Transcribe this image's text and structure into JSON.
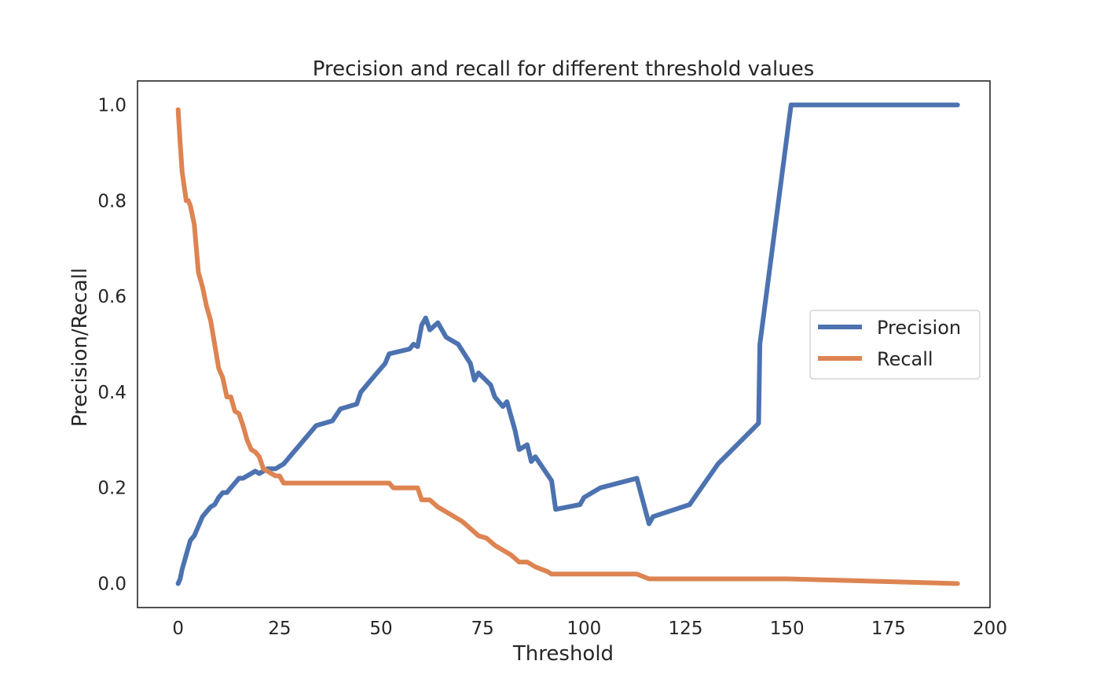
{
  "chart_data": {
    "type": "line",
    "title": "Precision and recall for different threshold values",
    "xlabel": "Threshold",
    "ylabel": "Precision/Recall",
    "xlim": [
      -10,
      200
    ],
    "ylim": [
      -0.05,
      1.05
    ],
    "xticks": [
      0,
      25,
      50,
      75,
      100,
      125,
      150,
      175,
      200
    ],
    "yticks": [
      0.0,
      0.2,
      0.4,
      0.6,
      0.8,
      1.0
    ],
    "xtick_labels": [
      "0",
      "25",
      "50",
      "75",
      "100",
      "125",
      "150",
      "175",
      "200"
    ],
    "ytick_labels": [
      "0.0",
      "0.2",
      "0.4",
      "0.6",
      "0.8",
      "1.0"
    ],
    "grid": false,
    "legend": "center-right",
    "series": [
      {
        "name": "Precision",
        "color": "#4c72b0",
        "x": [
          0,
          0.5,
          1,
          2,
          3,
          4,
          5,
          6,
          7,
          8,
          9,
          10,
          11,
          12,
          13,
          14,
          15,
          16,
          17,
          18,
          19,
          20,
          21,
          22,
          23,
          24,
          25,
          26,
          27,
          28,
          29,
          30,
          31,
          32,
          33,
          34,
          36,
          38,
          40,
          44,
          45,
          47,
          49,
          51,
          52,
          57,
          58,
          59,
          60,
          61,
          62,
          64,
          66,
          69,
          72,
          73,
          74,
          77,
          78,
          80,
          81,
          83,
          84,
          86,
          87,
          88,
          92,
          93,
          99,
          100,
          104,
          113,
          116,
          117,
          126,
          133,
          143,
          143.3,
          151,
          192
        ],
        "y": [
          0.0,
          0.01,
          0.03,
          0.06,
          0.09,
          0.1,
          0.12,
          0.14,
          0.15,
          0.16,
          0.165,
          0.18,
          0.19,
          0.19,
          0.2,
          0.21,
          0.22,
          0.22,
          0.225,
          0.23,
          0.235,
          0.23,
          0.235,
          0.24,
          0.24,
          0.24,
          0.245,
          0.25,
          0.26,
          0.27,
          0.28,
          0.29,
          0.3,
          0.31,
          0.32,
          0.33,
          0.335,
          0.34,
          0.365,
          0.375,
          0.4,
          0.42,
          0.44,
          0.46,
          0.48,
          0.49,
          0.5,
          0.495,
          0.54,
          0.555,
          0.53,
          0.545,
          0.515,
          0.5,
          0.46,
          0.425,
          0.44,
          0.415,
          0.39,
          0.37,
          0.38,
          0.32,
          0.28,
          0.29,
          0.255,
          0.265,
          0.215,
          0.155,
          0.165,
          0.18,
          0.2,
          0.22,
          0.125,
          0.14,
          0.165,
          0.25,
          0.335,
          0.5,
          1.0,
          1.0
        ]
      },
      {
        "name": "Recall",
        "color": "#dd8452",
        "x": [
          0,
          0.5,
          1,
          1.5,
          2,
          2.5,
          3,
          4,
          4.5,
          5,
          6,
          7,
          8,
          9,
          10,
          11,
          12,
          13,
          14,
          15,
          16,
          17,
          18,
          19,
          20,
          21,
          22,
          23,
          24,
          25,
          26,
          30,
          40,
          50,
          52,
          53,
          58,
          59,
          60,
          62,
          64,
          65,
          68,
          70,
          72,
          74,
          76,
          78,
          80,
          82,
          84,
          86,
          88,
          91,
          92,
          100,
          113,
          116,
          150,
          192
        ],
        "y": [
          0.99,
          0.92,
          0.86,
          0.83,
          0.8,
          0.8,
          0.79,
          0.75,
          0.7,
          0.65,
          0.62,
          0.58,
          0.55,
          0.5,
          0.45,
          0.43,
          0.39,
          0.39,
          0.36,
          0.355,
          0.33,
          0.3,
          0.28,
          0.275,
          0.265,
          0.24,
          0.235,
          0.23,
          0.225,
          0.225,
          0.21,
          0.21,
          0.21,
          0.21,
          0.21,
          0.2,
          0.2,
          0.2,
          0.175,
          0.175,
          0.16,
          0.155,
          0.14,
          0.13,
          0.115,
          0.1,
          0.095,
          0.08,
          0.07,
          0.06,
          0.045,
          0.045,
          0.035,
          0.025,
          0.02,
          0.02,
          0.02,
          0.01,
          0.01,
          0.0
        ]
      }
    ]
  }
}
